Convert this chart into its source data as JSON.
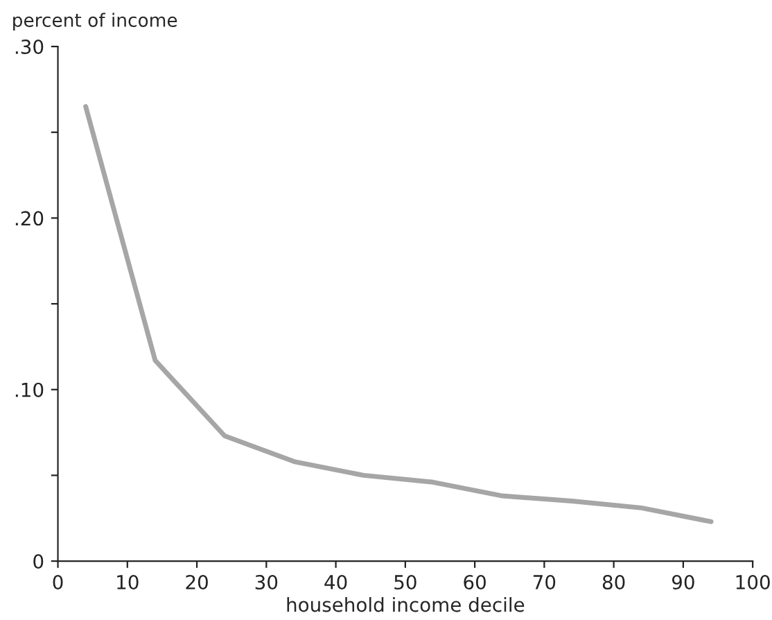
{
  "chart_data": {
    "type": "line",
    "xlabel": "household income decile",
    "ylabel": "percent of income",
    "x": [
      4,
      14,
      24,
      34,
      44,
      54,
      64,
      74,
      84,
      94
    ],
    "series": [
      {
        "color": "#a6a6a6",
        "values": [
          0.265,
          0.117,
          0.073,
          0.058,
          0.05,
          0.046,
          0.038,
          0.035,
          0.031,
          0.023
        ]
      }
    ],
    "xlim": [
      0,
      100
    ],
    "ylim": [
      0,
      0.3
    ],
    "xticks": [
      0,
      10,
      20,
      30,
      40,
      50,
      60,
      70,
      80,
      90,
      100
    ],
    "yticks": [
      0,
      {
        "value": 0.05,
        "label": null
      },
      {
        "value": 0.1,
        "label": ".10"
      },
      {
        "value": 0.15,
        "label": null
      },
      {
        "value": 0.2,
        "label": ".20"
      },
      {
        "value": 0.25,
        "label": null
      },
      {
        "value": 0.3,
        "label": ".30"
      }
    ],
    "grid": false,
    "legend": false,
    "marker": "none",
    "line_style": "solid"
  }
}
